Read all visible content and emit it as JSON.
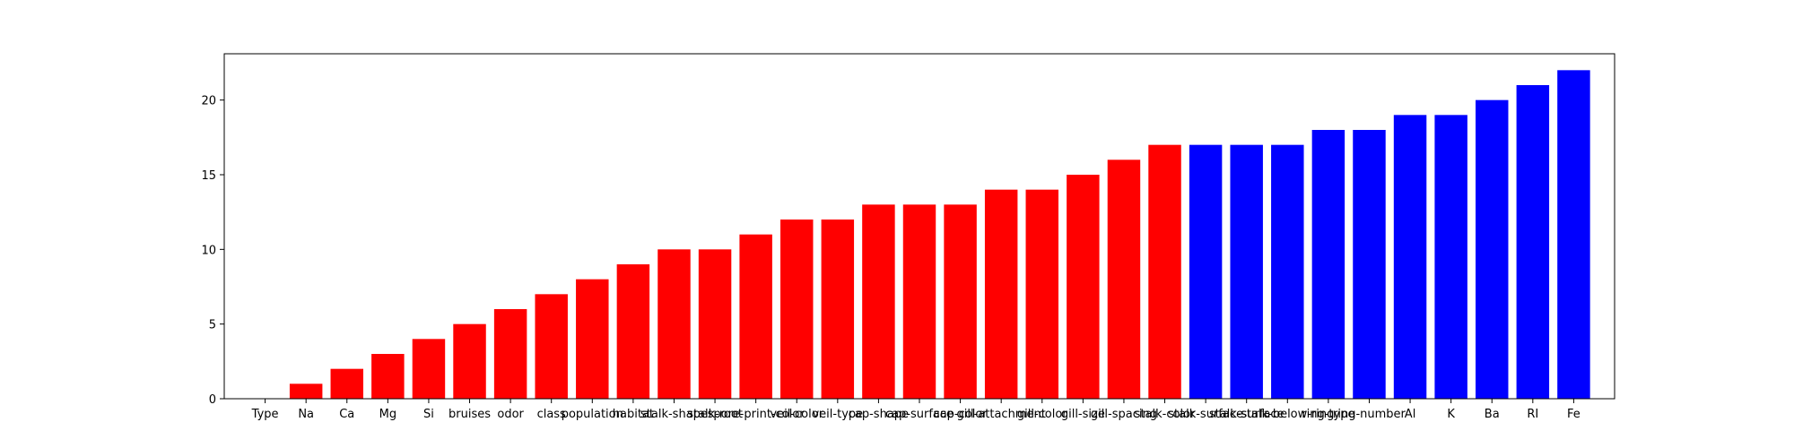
{
  "chart_data": {
    "type": "bar",
    "title": "",
    "xlabel": "",
    "ylabel": "",
    "ylim": [
      0,
      23.1
    ],
    "yticks": [
      0,
      5,
      10,
      15,
      20
    ],
    "grid": false,
    "legend": "none",
    "categories": [
      "Type",
      "Na",
      "Ca",
      "Mg",
      "Si",
      "bruises",
      "odor",
      "class",
      "population",
      "habitat",
      "stalk-shape",
      "stalk-root",
      "spore-print-color",
      "veil-color",
      "veil-type",
      "cap-shape",
      "cap-surface",
      "cap-color",
      "gill-attachment",
      "gill-color",
      "gill-size",
      "gill-spacing",
      "stalk-color",
      "stalk-surface",
      "stalk-surface",
      "stalk-below-ring",
      "ring-type",
      "ring-number",
      "Al",
      "K",
      "Ba",
      "RI",
      "Fe"
    ],
    "values": [
      0,
      1,
      2,
      3,
      4,
      5,
      6,
      7,
      8,
      9,
      10,
      10,
      11,
      12,
      12,
      13,
      13,
      13,
      14,
      14,
      15,
      16,
      17,
      17,
      17,
      17,
      18,
      18,
      19,
      19,
      20,
      21,
      22
    ],
    "colors": [
      "#ff0000",
      "#ff0000",
      "#ff0000",
      "#ff0000",
      "#ff0000",
      "#ff0000",
      "#ff0000",
      "#ff0000",
      "#ff0000",
      "#ff0000",
      "#ff0000",
      "#ff0000",
      "#ff0000",
      "#ff0000",
      "#ff0000",
      "#ff0000",
      "#ff0000",
      "#ff0000",
      "#ff0000",
      "#ff0000",
      "#ff0000",
      "#ff0000",
      "#ff0000",
      "#0000ff",
      "#0000ff",
      "#0000ff",
      "#0000ff",
      "#0000ff",
      "#0000ff",
      "#0000ff",
      "#0000ff",
      "#0000ff",
      "#0000ff"
    ]
  }
}
